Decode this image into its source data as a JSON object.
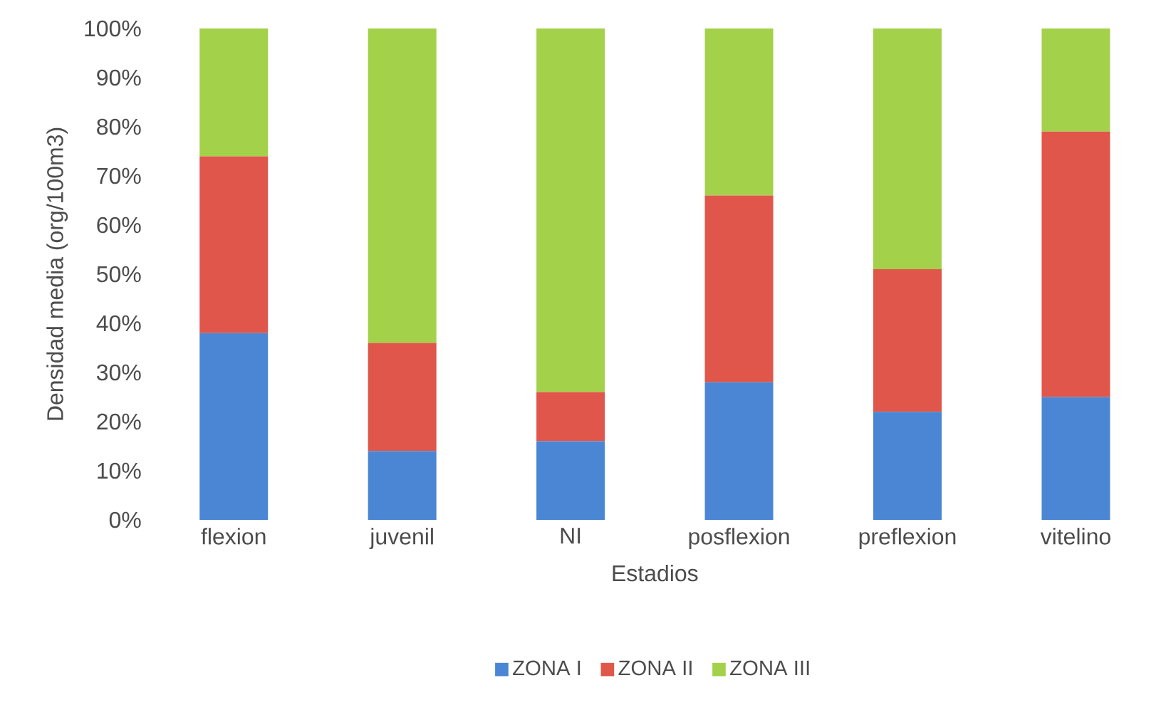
{
  "chart_data": {
    "type": "bar",
    "stacked": true,
    "xlabel": "Estadios",
    "ylabel": "Densidad media (org/100m3)",
    "categories": [
      "flexion",
      "juvenil",
      "NI",
      "posflexion",
      "preflexion",
      "vitelino"
    ],
    "series": [
      {
        "name": "ZONA I",
        "color": "#4a86d4",
        "values": [
          38,
          14,
          16,
          28,
          22,
          25
        ]
      },
      {
        "name": "ZONA II",
        "color": "#e0564a",
        "values": [
          36,
          22,
          10,
          38,
          29,
          54
        ]
      },
      {
        "name": "ZONA III",
        "color": "#a3d14a",
        "values": [
          26,
          64,
          74,
          34,
          49,
          21
        ]
      }
    ],
    "ylim": [
      0,
      100
    ],
    "yticks": [
      {
        "value": 0,
        "label": "0%"
      },
      {
        "value": 10,
        "label": "10%"
      },
      {
        "value": 20,
        "label": "20%"
      },
      {
        "value": 30,
        "label": "30%"
      },
      {
        "value": 40,
        "label": "40%"
      },
      {
        "value": 50,
        "label": "50%"
      },
      {
        "value": 60,
        "label": "60%"
      },
      {
        "value": 70,
        "label": "70%"
      },
      {
        "value": 80,
        "label": "80%"
      },
      {
        "value": 90,
        "label": "90%"
      },
      {
        "value": 100,
        "label": "100%"
      }
    ],
    "legend": "bottom"
  }
}
